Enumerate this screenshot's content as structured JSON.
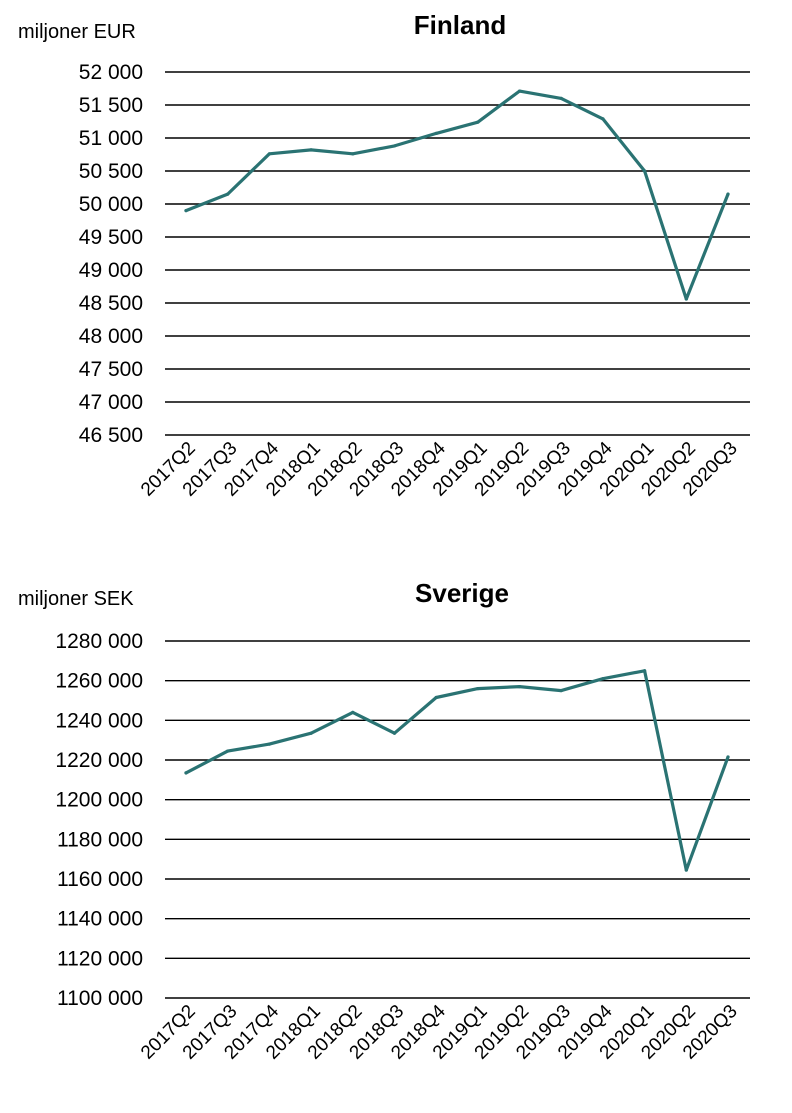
{
  "colors": {
    "line": "#2a7373",
    "grid": "#000000",
    "text": "#000000"
  },
  "chart_data": [
    {
      "type": "line",
      "title": "Finland",
      "unit_label": "miljoner EUR",
      "categories": [
        "2017Q2",
        "2017Q3",
        "2017Q4",
        "2018Q1",
        "2018Q2",
        "2018Q3",
        "2018Q4",
        "2019Q1",
        "2019Q2",
        "2019Q3",
        "2019Q4",
        "2020Q1",
        "2020Q2",
        "2020Q3"
      ],
      "values": [
        49900,
        50150,
        50760,
        50820,
        50760,
        50880,
        51070,
        51240,
        51710,
        51600,
        51290,
        50500,
        48560,
        50150
      ],
      "ylim": [
        46500,
        52000
      ],
      "yticks": [
        52000,
        51500,
        51000,
        50500,
        50000,
        49500,
        49000,
        48500,
        48000,
        47500,
        47000,
        46500
      ],
      "ytick_labels": [
        "52 000",
        "51 500",
        "51 000",
        "50 500",
        "50 000",
        "49 500",
        "49 000",
        "48 500",
        "48 000",
        "47 500",
        "47 000",
        "46 500"
      ],
      "grid": true
    },
    {
      "type": "line",
      "title": "Sverige",
      "unit_label": "miljoner SEK",
      "categories": [
        "2017Q2",
        "2017Q3",
        "2017Q4",
        "2018Q1",
        "2018Q2",
        "2018Q3",
        "2018Q4",
        "2019Q1",
        "2019Q2",
        "2019Q3",
        "2019Q4",
        "2020Q1",
        "2020Q2",
        "2020Q3"
      ],
      "values": [
        1213500,
        1224500,
        1228000,
        1233500,
        1244000,
        1233500,
        1251500,
        1256000,
        1257000,
        1255000,
        1261000,
        1265000,
        1164500,
        1221500
      ],
      "ylim": [
        1100000,
        1280000
      ],
      "yticks": [
        1280000,
        1260000,
        1240000,
        1220000,
        1200000,
        1180000,
        1160000,
        1140000,
        1120000,
        1100000
      ],
      "ytick_labels": [
        "1280 000",
        "1260 000",
        "1240 000",
        "1220 000",
        "1200 000",
        "1180 000",
        "1160 000",
        "1140 000",
        "1120 000",
        "1100 000"
      ],
      "grid": true
    }
  ]
}
